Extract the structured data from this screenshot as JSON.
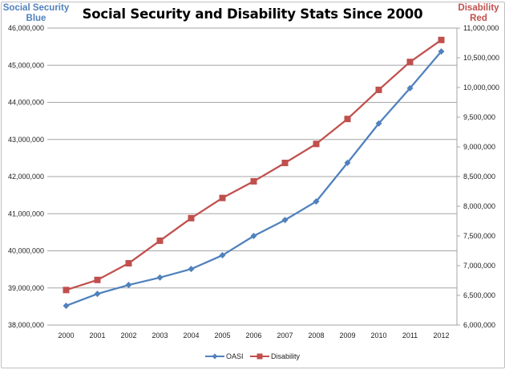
{
  "chart_data": {
    "type": "line",
    "title": "Social Security and Disability Stats Since 2000",
    "xlabel": "",
    "ylabel": "Social Security Blue",
    "y2label": "Disability Red",
    "categories": [
      "2000",
      "2001",
      "2002",
      "2003",
      "2004",
      "2005",
      "2006",
      "2007",
      "2008",
      "2009",
      "2010",
      "2011",
      "2012"
    ],
    "ylim": [
      38000000,
      46000000
    ],
    "y2lim": [
      6000000,
      11000000
    ],
    "yticks": [
      "38,000,000",
      "39,000,000",
      "40,000,000",
      "41,000,000",
      "42,000,000",
      "43,000,000",
      "44,000,000",
      "45,000,000",
      "46,000,000"
    ],
    "y2ticks": [
      "6,000,000",
      "6,500,000",
      "7,000,000",
      "7,500,000",
      "8,000,000",
      "8,500,000",
      "9,000,000",
      "9,500,000",
      "10,000,000",
      "10,500,000",
      "11,000,000"
    ],
    "grid": true,
    "legend_position": "bottom",
    "series": [
      {
        "name": "OASI",
        "axis": "left",
        "color": "#4f81bd",
        "marker": "diamond",
        "values": [
          38520000,
          38840000,
          39080000,
          39280000,
          39510000,
          39880000,
          40400000,
          40830000,
          41330000,
          42370000,
          43430000,
          44380000,
          45370000
        ]
      },
      {
        "name": "Disability",
        "axis": "right",
        "color": "#c0504d",
        "marker": "square",
        "values": [
          6590000,
          6760000,
          7040000,
          7420000,
          7800000,
          8140000,
          8420000,
          8730000,
          9050000,
          9470000,
          9960000,
          10430000,
          10800000
        ]
      }
    ]
  },
  "labels": {
    "left_axis_title_line1": "Social Security",
    "left_axis_title_line2": "Blue",
    "right_axis_title_line1": "Disability",
    "right_axis_title_line2": "Red"
  }
}
